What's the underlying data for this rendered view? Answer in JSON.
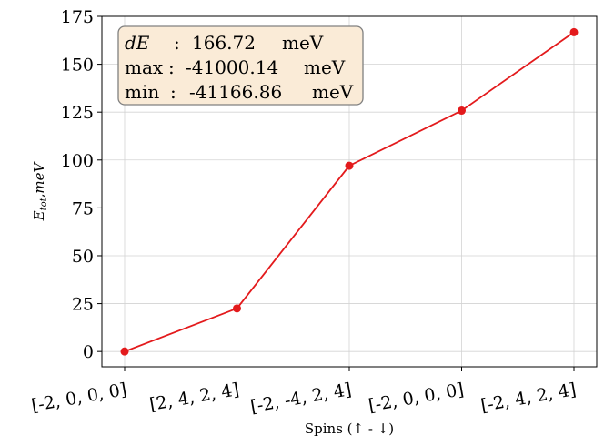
{
  "chart_data": {
    "type": "line",
    "categories": [
      "[-2, 0, 0, 0]",
      "[2, 4, 2, 4]",
      "[-2, -4, 2, 4]",
      "[-2, 0, 0, 0]",
      "[-2, 4, 2, 4]"
    ],
    "series": [
      {
        "values": [
          0,
          22.5,
          97,
          125.8,
          166.72
        ],
        "color": "#e31a1c"
      }
    ],
    "xlabel": "Spins (↑ - ↓)",
    "ylabel_main": "E",
    "ylabel_sub": "tot",
    "ylabel_suffix": ",meV",
    "ylim": [
      -8,
      175
    ],
    "yticks": [
      0,
      25,
      50,
      75,
      100,
      125,
      150,
      175
    ],
    "grid": true,
    "annotation": {
      "lines": [
        {
          "key": "dE",
          "sep": ":",
          "value": "166.72",
          "unit": "meV"
        },
        {
          "key": "max",
          "sep": ":",
          "value": "-41000.14",
          "unit": "meV"
        },
        {
          "key": "min",
          "sep": ":",
          "value": "-41166.86",
          "unit": "meV"
        }
      ],
      "placement": "top-left",
      "box_color": "#faebd7"
    }
  }
}
